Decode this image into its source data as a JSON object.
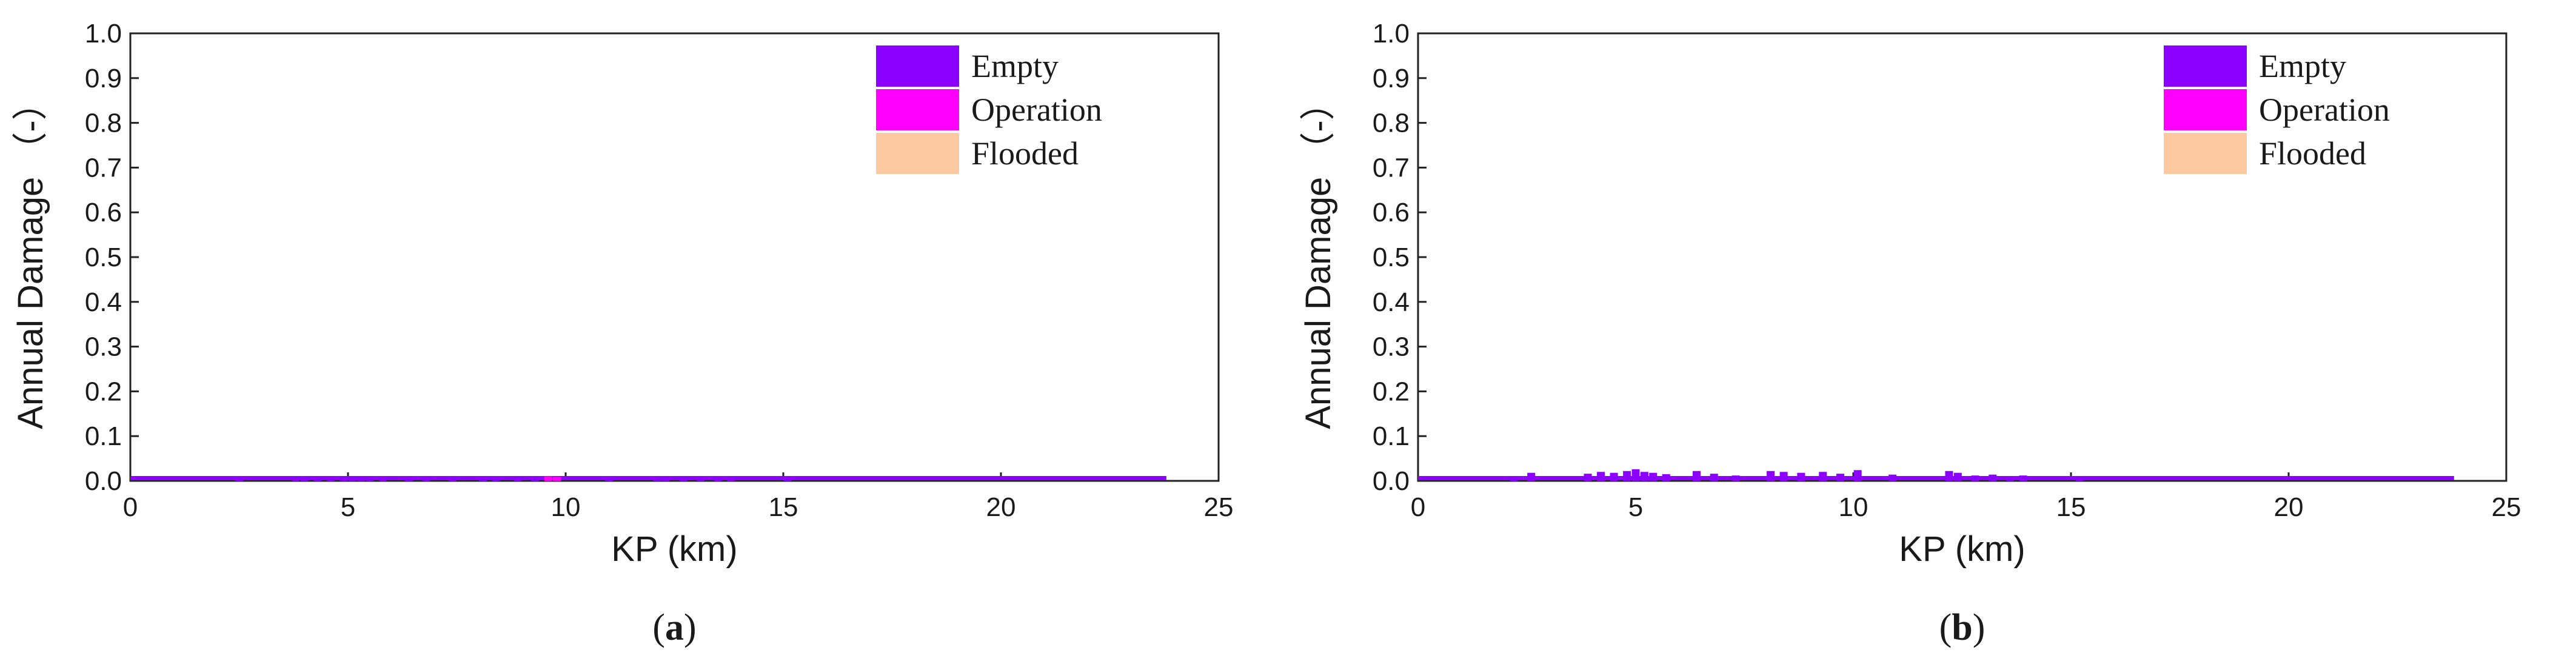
{
  "chart_data": [
    {
      "type": "bar",
      "panel_label": {
        "open": "(",
        "letter": "a",
        "close": ")"
      },
      "xlabel": "KP (km)",
      "ylabel": "Annual Damage （-）",
      "xlim": [
        0,
        25
      ],
      "ylim": [
        0,
        1.0
      ],
      "xticks": [
        0,
        5,
        10,
        15,
        20,
        25
      ],
      "yticks": [
        "0.0",
        "0.1",
        "0.2",
        "0.3",
        "0.4",
        "0.5",
        "0.6",
        "0.7",
        "0.8",
        "0.9",
        "1.0"
      ],
      "grid": false,
      "legend_position": "top-right",
      "baseline_end_km": 23.8,
      "series": [
        {
          "name": "Empty",
          "color": "#8b00ff",
          "x": [
            2.5,
            3.8,
            4.0,
            4.3,
            4.6,
            4.9,
            5.1,
            5.3,
            5.5,
            5.8,
            6.4,
            6.8,
            7.4,
            8.1,
            8.4,
            8.9,
            9.3,
            11.0,
            12.1,
            12.3,
            12.7,
            13.1,
            13.5,
            13.8,
            15.1
          ],
          "values": [
            0.008,
            0.007,
            0.006,
            0.008,
            0.007,
            0.008,
            0.01,
            0.007,
            0.008,
            0.006,
            0.008,
            0.006,
            0.006,
            0.007,
            0.006,
            0.008,
            0.006,
            0.006,
            0.006,
            0.008,
            0.005,
            0.006,
            0.005,
            0.005,
            0.004
          ]
        },
        {
          "name": "Operation",
          "color": "#ff00ff",
          "x": [
            9.6,
            9.8
          ],
          "values": [
            0.01,
            0.009
          ]
        },
        {
          "name": "Flooded",
          "color": "#fcc9a0",
          "x": [],
          "values": []
        }
      ]
    },
    {
      "type": "bar",
      "panel_label": {
        "open": "(",
        "letter": "b",
        "close": ")"
      },
      "xlabel": "KP (km)",
      "ylabel": "Annual Damage （-）",
      "xlim": [
        0,
        25
      ],
      "ylim": [
        0,
        1.0
      ],
      "xticks": [
        0,
        5,
        10,
        15,
        20,
        25
      ],
      "yticks": [
        "0.0",
        "0.1",
        "0.2",
        "0.3",
        "0.4",
        "0.5",
        "0.6",
        "0.7",
        "0.8",
        "0.9",
        "1.0"
      ],
      "grid": false,
      "legend_position": "top-right",
      "baseline_end_km": 23.8,
      "series": [
        {
          "name": "Empty",
          "color": "#8b00ff",
          "x": [
            2.2,
            2.6,
            3.9,
            4.2,
            4.5,
            4.8,
            5.0,
            5.2,
            5.4,
            5.7,
            6.4,
            6.8,
            7.3,
            8.1,
            8.4,
            8.8,
            9.3,
            9.7,
            10.1,
            10.9,
            12.2,
            12.4,
            12.8,
            13.2,
            13.6,
            13.9,
            15.2
          ],
          "values": [
            0.005,
            0.018,
            0.016,
            0.02,
            0.018,
            0.022,
            0.026,
            0.02,
            0.018,
            0.015,
            0.022,
            0.016,
            0.012,
            0.022,
            0.02,
            0.018,
            0.02,
            0.016,
            0.024,
            0.014,
            0.022,
            0.018,
            0.012,
            0.014,
            0.01,
            0.012,
            0.008
          ]
        },
        {
          "name": "Operation",
          "color": "#ff00ff",
          "x": [],
          "values": []
        },
        {
          "name": "Flooded",
          "color": "#fcc9a0",
          "x": [],
          "values": []
        }
      ]
    }
  ]
}
